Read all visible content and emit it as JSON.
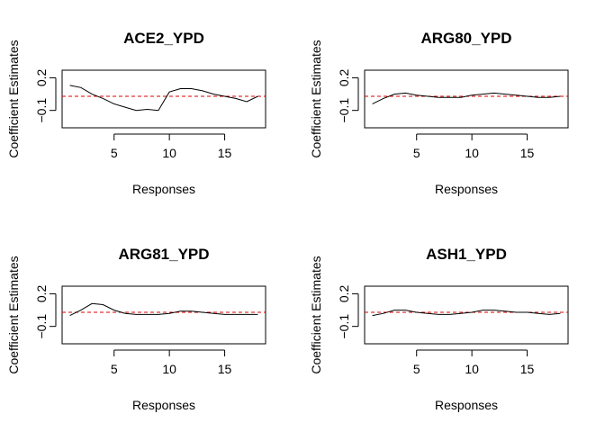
{
  "chart_data": [
    {
      "type": "line",
      "title": "ACE2_YPD",
      "xlabel": "Responses",
      "ylabel": "Coefficient Estimates",
      "xlim": [
        0.3,
        18.7
      ],
      "ylim": [
        -0.26,
        0.27
      ],
      "xticks": [
        5,
        10,
        15
      ],
      "yticks": [
        -0.1,
        0.2
      ],
      "reference_line": {
        "y": 0.03,
        "color": "#dd0000",
        "style": "dashed"
      },
      "series": [
        {
          "color": "#000000",
          "x": [
            1,
            2,
            3,
            4,
            5,
            6,
            7,
            8,
            9,
            10,
            11,
            12,
            13,
            14,
            15,
            16,
            17,
            18
          ],
          "y": [
            0.13,
            0.11,
            0.05,
            0.01,
            -0.04,
            -0.07,
            -0.1,
            -0.09,
            -0.1,
            0.07,
            0.1,
            0.1,
            0.08,
            0.05,
            0.03,
            0.01,
            -0.02,
            0.03
          ]
        }
      ]
    },
    {
      "type": "line",
      "title": "ARG80_YPD",
      "xlabel": "Responses",
      "ylabel": "Coefficient Estimates",
      "xlim": [
        0.3,
        18.7
      ],
      "ylim": [
        -0.26,
        0.27
      ],
      "xticks": [
        5,
        10,
        15
      ],
      "yticks": [
        -0.1,
        0.2
      ],
      "reference_line": {
        "y": 0.03,
        "color": "#dd0000",
        "style": "dashed"
      },
      "series": [
        {
          "color": "#000000",
          "x": [
            1,
            2,
            3,
            4,
            5,
            6,
            7,
            8,
            9,
            10,
            11,
            12,
            13,
            14,
            15,
            16,
            17,
            18
          ],
          "y": [
            -0.04,
            0.01,
            0.05,
            0.06,
            0.04,
            0.03,
            0.02,
            0.02,
            0.02,
            0.04,
            0.05,
            0.06,
            0.05,
            0.04,
            0.03,
            0.02,
            0.02,
            0.03
          ]
        }
      ]
    },
    {
      "type": "line",
      "title": "ARG81_YPD",
      "xlabel": "Responses",
      "ylabel": "Coefficient Estimates",
      "xlim": [
        0.3,
        18.7
      ],
      "ylim": [
        -0.26,
        0.27
      ],
      "xticks": [
        5,
        10,
        15
      ],
      "yticks": [
        -0.1,
        0.2
      ],
      "reference_line": {
        "y": 0.03,
        "color": "#dd0000",
        "style": "dashed"
      },
      "series": [
        {
          "color": "#000000",
          "x": [
            1,
            2,
            3,
            4,
            5,
            6,
            7,
            8,
            9,
            10,
            11,
            12,
            13,
            14,
            15,
            16,
            17,
            18
          ],
          "y": [
            0.0,
            0.05,
            0.11,
            0.1,
            0.05,
            0.02,
            0.01,
            0.01,
            0.01,
            0.02,
            0.04,
            0.04,
            0.03,
            0.02,
            0.01,
            0.01,
            0.01,
            0.01
          ]
        }
      ]
    },
    {
      "type": "line",
      "title": "ASH1_YPD",
      "xlabel": "Responses",
      "ylabel": "Coefficient Estimates",
      "xlim": [
        0.3,
        18.7
      ],
      "ylim": [
        -0.26,
        0.27
      ],
      "xticks": [
        5,
        10,
        15
      ],
      "yticks": [
        -0.1,
        0.2
      ],
      "reference_line": {
        "y": 0.03,
        "color": "#dd0000",
        "style": "dashed"
      },
      "series": [
        {
          "color": "#000000",
          "x": [
            1,
            2,
            3,
            4,
            5,
            6,
            7,
            8,
            9,
            10,
            11,
            12,
            13,
            14,
            15,
            16,
            17,
            18
          ],
          "y": [
            0.0,
            0.02,
            0.05,
            0.05,
            0.03,
            0.02,
            0.01,
            0.01,
            0.02,
            0.03,
            0.05,
            0.05,
            0.04,
            0.03,
            0.03,
            0.02,
            0.01,
            0.02
          ]
        }
      ]
    }
  ]
}
